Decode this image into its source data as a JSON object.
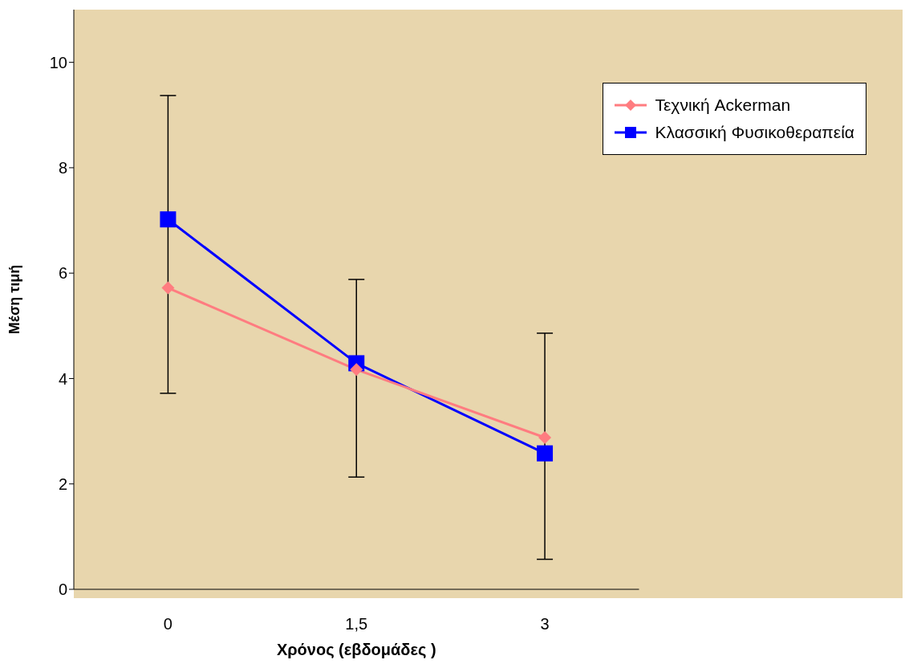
{
  "chart_data": {
    "type": "line",
    "xlabel": "Χρόνος (εβδομάδες )",
    "ylabel": "Μέση τιμή",
    "categories": [
      "0",
      "1,5",
      "3"
    ],
    "ylim": [
      0,
      11
    ],
    "yticks": [
      0,
      2,
      4,
      6,
      8,
      10
    ],
    "grid": false,
    "legend": "top right",
    "series": [
      {
        "name": "Τεχνική Ackerman",
        "color": "#ff7c80",
        "marker": "diamond",
        "values": [
          5.72,
          4.17,
          2.88
        ],
        "errors": [
          [
            3.72,
            9.37
          ],
          [
            2.13,
            5.88
          ],
          [
            0.57,
            4.86
          ]
        ]
      },
      {
        "name": "Κλασσική Φυσικοθεραπεία",
        "color": "#0000ff",
        "marker": "square",
        "values": [
          7.02,
          4.29,
          2.58
        ]
      }
    ]
  }
}
